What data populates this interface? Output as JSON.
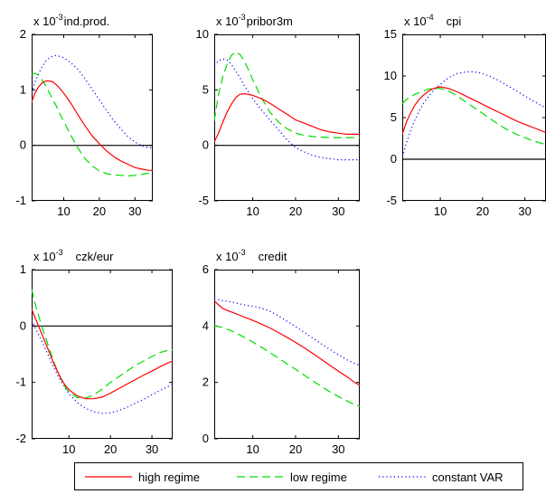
{
  "chart_data": [
    {
      "type": "line",
      "title": "ind.prod.",
      "scale_label": "x 10",
      "scale_exp": "-3",
      "xlim": [
        1,
        35
      ],
      "ylim": [
        -1,
        2
      ],
      "xticks": [
        10,
        20,
        30
      ],
      "yticks": [
        -1,
        0,
        1,
        2
      ],
      "zero_line": true,
      "series": [
        {
          "name": "high regime",
          "x": [
            1,
            2,
            3,
            4,
            5,
            6,
            7,
            8,
            9,
            10,
            12,
            14,
            16,
            18,
            20,
            22,
            24,
            26,
            28,
            30,
            32,
            34,
            35
          ],
          "values": [
            0.78,
            0.95,
            1.06,
            1.13,
            1.16,
            1.16,
            1.14,
            1.09,
            1.02,
            0.94,
            0.76,
            0.55,
            0.35,
            0.17,
            0.03,
            -0.1,
            -0.2,
            -0.28,
            -0.34,
            -0.4,
            -0.43,
            -0.45,
            -0.45
          ]
        },
        {
          "name": "low regime",
          "x": [
            1,
            2,
            3,
            4,
            5,
            6,
            7,
            8,
            9,
            10,
            12,
            14,
            16,
            18,
            20,
            22,
            24,
            26,
            28,
            30,
            32,
            34,
            35
          ],
          "values": [
            1.28,
            1.3,
            1.26,
            1.17,
            1.07,
            0.94,
            0.82,
            0.7,
            0.56,
            0.43,
            0.18,
            -0.05,
            -0.24,
            -0.37,
            -0.46,
            -0.51,
            -0.53,
            -0.54,
            -0.55,
            -0.54,
            -0.52,
            -0.5,
            -0.5
          ]
        },
        {
          "name": "constant VAR",
          "x": [
            1,
            2,
            3,
            4,
            5,
            6,
            7,
            8,
            9,
            10,
            12,
            14,
            16,
            18,
            20,
            22,
            24,
            26,
            28,
            30,
            32,
            34,
            35
          ],
          "values": [
            0.95,
            1.15,
            1.3,
            1.42,
            1.52,
            1.58,
            1.61,
            1.62,
            1.6,
            1.58,
            1.49,
            1.37,
            1.2,
            1.01,
            0.82,
            0.63,
            0.45,
            0.3,
            0.16,
            0.06,
            -0.01,
            -0.04,
            -0.05
          ]
        }
      ]
    },
    {
      "type": "line",
      "title": "pribor3m",
      "scale_label": "x 10",
      "scale_exp": "-3",
      "xlim": [
        1,
        35
      ],
      "ylim": [
        -5,
        10
      ],
      "xticks": [
        10,
        20,
        30
      ],
      "yticks": [
        -5,
        0,
        5,
        10
      ],
      "zero_line": true,
      "series": [
        {
          "name": "high regime",
          "x": [
            1,
            2,
            3,
            4,
            5,
            6,
            7,
            8,
            9,
            10,
            12,
            14,
            16,
            18,
            20,
            22,
            24,
            26,
            28,
            30,
            32,
            34,
            35
          ],
          "values": [
            0.3,
            1.1,
            2.1,
            3.0,
            3.7,
            4.3,
            4.6,
            4.65,
            4.6,
            4.5,
            4.2,
            3.8,
            3.3,
            2.8,
            2.3,
            2.0,
            1.7,
            1.4,
            1.2,
            1.1,
            1.0,
            1.0,
            1.0
          ]
        },
        {
          "name": "low regime",
          "x": [
            1,
            2,
            3,
            4,
            5,
            6,
            7,
            8,
            9,
            10,
            12,
            14,
            16,
            18,
            20,
            22,
            24,
            26,
            28,
            30,
            32,
            34,
            35
          ],
          "values": [
            2.2,
            4.6,
            6.2,
            7.3,
            8.1,
            8.4,
            8.2,
            7.6,
            6.8,
            5.9,
            4.3,
            3.0,
            2.1,
            1.5,
            1.1,
            0.9,
            0.8,
            0.75,
            0.7,
            0.7,
            0.7,
            0.7,
            0.7
          ]
        },
        {
          "name": "constant VAR",
          "x": [
            1,
            2,
            3,
            4,
            5,
            6,
            7,
            8,
            9,
            10,
            12,
            14,
            16,
            18,
            20,
            22,
            24,
            26,
            28,
            30,
            32,
            34,
            35
          ],
          "values": [
            7.2,
            7.6,
            7.8,
            7.7,
            7.3,
            6.7,
            6.1,
            5.4,
            4.8,
            4.2,
            3.2,
            2.3,
            1.4,
            0.5,
            -0.2,
            -0.6,
            -0.9,
            -1.1,
            -1.2,
            -1.3,
            -1.3,
            -1.3,
            -1.3
          ]
        }
      ]
    },
    {
      "type": "line",
      "title": "cpi",
      "scale_label": "x 10",
      "scale_exp": "-4",
      "xlim": [
        1,
        35
      ],
      "ylim": [
        -5,
        15
      ],
      "xticks": [
        10,
        20,
        30
      ],
      "yticks": [
        -5,
        0,
        5,
        10,
        15
      ],
      "zero_line": true,
      "series": [
        {
          "name": "high regime",
          "x": [
            1,
            2,
            3,
            4,
            5,
            6,
            7,
            8,
            9,
            10,
            12,
            14,
            16,
            18,
            20,
            22,
            24,
            26,
            28,
            30,
            32,
            34,
            35
          ],
          "values": [
            3.0,
            4.5,
            5.6,
            6.5,
            7.2,
            7.7,
            8.1,
            8.4,
            8.6,
            8.7,
            8.5,
            8.1,
            7.6,
            7.1,
            6.6,
            6.1,
            5.6,
            5.1,
            4.6,
            4.2,
            3.8,
            3.4,
            3.2
          ]
        },
        {
          "name": "low regime",
          "x": [
            1,
            2,
            3,
            4,
            5,
            6,
            7,
            8,
            9,
            10,
            12,
            14,
            16,
            18,
            20,
            22,
            24,
            26,
            28,
            30,
            32,
            34,
            35
          ],
          "values": [
            6.7,
            7.2,
            7.5,
            7.8,
            8.0,
            8.2,
            8.4,
            8.5,
            8.5,
            8.5,
            8.2,
            7.6,
            6.9,
            6.2,
            5.5,
            4.8,
            4.1,
            3.5,
            3.0,
            2.6,
            2.2,
            1.9,
            1.8
          ]
        },
        {
          "name": "constant VAR",
          "x": [
            1,
            2,
            3,
            4,
            5,
            6,
            7,
            8,
            9,
            10,
            12,
            14,
            16,
            18,
            20,
            22,
            24,
            26,
            28,
            30,
            32,
            34,
            35
          ],
          "values": [
            0.3,
            2.0,
            3.5,
            4.7,
            5.8,
            6.7,
            7.4,
            8.0,
            8.6,
            9.0,
            9.8,
            10.3,
            10.5,
            10.5,
            10.3,
            9.9,
            9.4,
            8.8,
            8.2,
            7.6,
            7.0,
            6.4,
            6.2
          ]
        }
      ]
    },
    {
      "type": "line",
      "title": "czk/eur",
      "scale_label": "x 10",
      "scale_exp": "-3",
      "xlim": [
        1,
        35
      ],
      "ylim": [
        -2,
        1
      ],
      "xticks": [
        10,
        20,
        30
      ],
      "yticks": [
        -2,
        -1,
        0,
        1
      ],
      "zero_line": true,
      "series": [
        {
          "name": "high regime",
          "x": [
            1,
            2,
            3,
            4,
            5,
            6,
            7,
            8,
            9,
            10,
            12,
            14,
            16,
            18,
            20,
            22,
            24,
            26,
            28,
            30,
            32,
            34,
            35
          ],
          "values": [
            0.3,
            0.12,
            -0.06,
            -0.24,
            -0.42,
            -0.6,
            -0.77,
            -0.92,
            -1.04,
            -1.13,
            -1.24,
            -1.29,
            -1.29,
            -1.26,
            -1.19,
            -1.11,
            -1.03,
            -0.95,
            -0.87,
            -0.8,
            -0.72,
            -0.65,
            -0.62
          ]
        },
        {
          "name": "low regime",
          "x": [
            1,
            2,
            3,
            4,
            5,
            6,
            7,
            8,
            9,
            10,
            12,
            14,
            16,
            18,
            20,
            22,
            24,
            26,
            28,
            30,
            32,
            34,
            35
          ],
          "values": [
            0.65,
            0.35,
            0.1,
            -0.13,
            -0.35,
            -0.56,
            -0.76,
            -0.93,
            -1.07,
            -1.17,
            -1.27,
            -1.28,
            -1.22,
            -1.12,
            -1.0,
            -0.9,
            -0.8,
            -0.7,
            -0.62,
            -0.54,
            -0.47,
            -0.43,
            -0.42
          ]
        },
        {
          "name": "constant VAR",
          "x": [
            1,
            2,
            3,
            4,
            5,
            6,
            7,
            8,
            9,
            10,
            12,
            14,
            16,
            18,
            20,
            22,
            24,
            26,
            28,
            30,
            32,
            34,
            35
          ],
          "values": [
            0.1,
            -0.05,
            -0.2,
            -0.36,
            -0.52,
            -0.68,
            -0.83,
            -0.97,
            -1.09,
            -1.2,
            -1.36,
            -1.46,
            -1.52,
            -1.55,
            -1.54,
            -1.5,
            -1.44,
            -1.37,
            -1.3,
            -1.22,
            -1.14,
            -1.07,
            -1.04
          ]
        }
      ]
    },
    {
      "type": "line",
      "title": "credit",
      "scale_label": "x 10",
      "scale_exp": "-3",
      "xlim": [
        1,
        35
      ],
      "ylim": [
        0,
        6
      ],
      "xticks": [
        10,
        20,
        30
      ],
      "yticks": [
        0,
        2,
        4,
        6
      ],
      "zero_line": false,
      "series": [
        {
          "name": "high regime",
          "x": [
            1,
            2,
            3,
            4,
            5,
            6,
            7,
            8,
            9,
            10,
            12,
            14,
            16,
            18,
            20,
            22,
            24,
            26,
            28,
            30,
            32,
            34,
            35
          ],
          "values": [
            4.9,
            4.75,
            4.62,
            4.56,
            4.5,
            4.44,
            4.38,
            4.32,
            4.26,
            4.2,
            4.07,
            3.93,
            3.77,
            3.6,
            3.42,
            3.23,
            3.03,
            2.82,
            2.61,
            2.4,
            2.2,
            1.98,
            1.9
          ]
        },
        {
          "name": "low regime",
          "x": [
            1,
            2,
            3,
            4,
            5,
            6,
            7,
            8,
            9,
            10,
            12,
            14,
            16,
            18,
            20,
            22,
            24,
            26,
            28,
            30,
            32,
            34,
            35
          ],
          "values": [
            4.02,
            3.98,
            3.94,
            3.89,
            3.83,
            3.76,
            3.68,
            3.6,
            3.52,
            3.43,
            3.25,
            3.06,
            2.86,
            2.66,
            2.46,
            2.26,
            2.06,
            1.86,
            1.67,
            1.5,
            1.34,
            1.2,
            1.15
          ]
        },
        {
          "name": "constant VAR",
          "x": [
            1,
            2,
            3,
            4,
            5,
            6,
            7,
            8,
            9,
            10,
            12,
            14,
            16,
            18,
            20,
            22,
            24,
            26,
            28,
            30,
            32,
            34,
            35
          ],
          "values": [
            4.95,
            4.93,
            4.9,
            4.88,
            4.85,
            4.82,
            4.78,
            4.75,
            4.72,
            4.7,
            4.64,
            4.52,
            4.36,
            4.17,
            3.98,
            3.78,
            3.57,
            3.37,
            3.17,
            2.98,
            2.8,
            2.66,
            2.6
          ]
        }
      ]
    }
  ],
  "legend": {
    "placement": "bottom",
    "entries": [
      {
        "label": "high regime",
        "color": "#ff0000",
        "style": "solid"
      },
      {
        "label": "low regime",
        "color": "#00dd00",
        "style": "dashed"
      },
      {
        "label": "constant VAR",
        "color": "#0000ff",
        "style": "dotted"
      }
    ]
  }
}
